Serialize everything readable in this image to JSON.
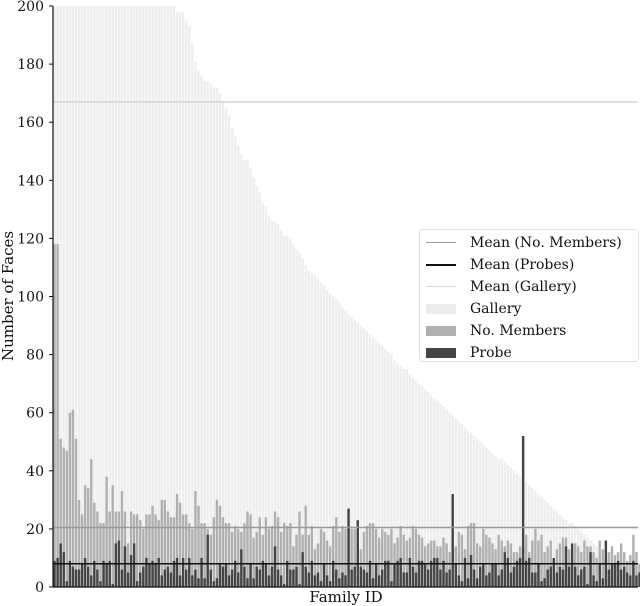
{
  "chart_data": {
    "type": "bar",
    "title": "",
    "xlabel": "Family ID",
    "ylabel": "Number of Faces",
    "ylim": [
      0,
      200
    ],
    "yticks": [
      0,
      20,
      40,
      60,
      80,
      100,
      120,
      140,
      160,
      180,
      200
    ],
    "xticks": [],
    "grid": false,
    "legend_position": "center right",
    "legend": [
      {
        "label": "Mean (No. Members)",
        "kind": "line",
        "color": "#9a9a9a"
      },
      {
        "label": "Mean (Probes)",
        "kind": "line",
        "color": "#111111"
      },
      {
        "label": "Mean (Gallery)",
        "kind": "line",
        "color": "#d4d4d4"
      },
      {
        "label": "Gallery",
        "kind": "bar",
        "color": "#eeeeee"
      },
      {
        "label": "No. Members",
        "kind": "bar",
        "color": "#b0b0b0"
      },
      {
        "label": "Probe",
        "kind": "bar",
        "color": "#454545"
      }
    ],
    "mean_lines": {
      "no_members": 20.5,
      "probes": 8,
      "gallery": 167
    },
    "series": [
      {
        "name": "Gallery",
        "color": "#eeeeee",
        "values": [
          200,
          200,
          200,
          200,
          200,
          200,
          200,
          200,
          200,
          200,
          200,
          200,
          200,
          200,
          200,
          200,
          200,
          200,
          200,
          200,
          200,
          200,
          200,
          200,
          200,
          200,
          200,
          200,
          200,
          200,
          200,
          200,
          200,
          200,
          200,
          200,
          200,
          200,
          200,
          200,
          198,
          198,
          198,
          195,
          193,
          187,
          181,
          178,
          176,
          174,
          174,
          173,
          172,
          172,
          170,
          167,
          165,
          162,
          158,
          155,
          152,
          149,
          147,
          147,
          144,
          141,
          138,
          136,
          132,
          131,
          128,
          126,
          126,
          125,
          123,
          121,
          121,
          120,
          118,
          116,
          115,
          113,
          111,
          109,
          108,
          107,
          106,
          105,
          104,
          102,
          101,
          100,
          99,
          98,
          96,
          95,
          94,
          93,
          92,
          91,
          90,
          89,
          88,
          87,
          86,
          85,
          84,
          83,
          82,
          81,
          80,
          78,
          77,
          76,
          75,
          75,
          73,
          72,
          71,
          70,
          69,
          68,
          67,
          66,
          65,
          64,
          63,
          62,
          61,
          60,
          59,
          58,
          57,
          56,
          55,
          54,
          53,
          52,
          51,
          50,
          49,
          48,
          47,
          46,
          45,
          44,
          44,
          43,
          42,
          41,
          40,
          39,
          38,
          37,
          36,
          35,
          34,
          33,
          32,
          31,
          30,
          29,
          28,
          27,
          26,
          25,
          24,
          23,
          22,
          22,
          21,
          20,
          19,
          18,
          17,
          16,
          15,
          14,
          13,
          12,
          11,
          10,
          9,
          8,
          7,
          6,
          5,
          5,
          4,
          3,
          2
        ]
      },
      {
        "name": "No. Members",
        "color": "#b0b0b0",
        "values": [
          118,
          118,
          51,
          48,
          47,
          60,
          61,
          51,
          30,
          25,
          35,
          34,
          44,
          29,
          26,
          22,
          22,
          38,
          26,
          35,
          26,
          26,
          33,
          26,
          15,
          26,
          25,
          25,
          23,
          20,
          25,
          25,
          28,
          25,
          23,
          30,
          30,
          26,
          24,
          24,
          32,
          29,
          25,
          25,
          22,
          20,
          33,
          28,
          22,
          22,
          20,
          18,
          24,
          30,
          28,
          24,
          22,
          22,
          19,
          21,
          20,
          19,
          22,
          26,
          25,
          17,
          19,
          24,
          18,
          24,
          20,
          21,
          26,
          24,
          19,
          22,
          21,
          22,
          14,
          18,
          26,
          18,
          28,
          18,
          21,
          13,
          15,
          20,
          19,
          16,
          14,
          21,
          24,
          19,
          21,
          20,
          21,
          20,
          20,
          16,
          13,
          19,
          21,
          22,
          22,
          20,
          17,
          20,
          19,
          18,
          20,
          15,
          17,
          21,
          18,
          16,
          17,
          21,
          20,
          18,
          17,
          14,
          15,
          16,
          16,
          14,
          14,
          17,
          15,
          12,
          12,
          14,
          19,
          18,
          13,
          21,
          22,
          22,
          15,
          14,
          20,
          18,
          17,
          15,
          13,
          18,
          16,
          14,
          16,
          15,
          12,
          12,
          14,
          13,
          18,
          12,
          16,
          20,
          16,
          18,
          12,
          14,
          16,
          10,
          13,
          15,
          17,
          17,
          13,
          11,
          15,
          14,
          12,
          16,
          14,
          14,
          12,
          10,
          16,
          13,
          10,
          12,
          14,
          11,
          12,
          15,
          12,
          9,
          11,
          18,
          12,
          8,
          9,
          10,
          15,
          13,
          10,
          9,
          10,
          7,
          6
        ]
      },
      {
        "name": "Probe",
        "color": "#454545",
        "values": [
          9,
          10,
          15,
          12,
          2,
          9,
          7,
          6,
          6,
          8,
          10,
          7,
          4,
          9,
          6,
          2,
          9,
          8,
          9,
          1,
          15,
          16,
          6,
          14,
          5,
          11,
          15,
          2,
          5,
          7,
          10,
          8,
          9,
          8,
          10,
          4,
          6,
          7,
          5,
          9,
          10,
          4,
          10,
          6,
          10,
          4,
          6,
          3,
          10,
          3,
          18,
          6,
          2,
          3,
          8,
          7,
          8,
          4,
          6,
          9,
          5,
          13,
          7,
          3,
          8,
          3,
          7,
          6,
          9,
          8,
          4,
          7,
          14,
          6,
          4,
          1,
          9,
          6,
          6,
          7,
          1,
          12,
          7,
          5,
          9,
          4,
          5,
          2,
          8,
          4,
          2,
          9,
          6,
          3,
          5,
          4,
          27,
          6,
          7,
          23,
          7,
          6,
          5,
          9,
          3,
          8,
          4,
          6,
          9,
          9,
          2,
          8,
          9,
          10,
          5,
          5,
          10,
          7,
          5,
          9,
          9,
          8,
          6,
          9,
          10,
          10,
          6,
          9,
          5,
          6,
          32,
          8,
          4,
          2,
          10,
          3,
          11,
          6,
          3,
          7,
          8,
          4,
          5,
          8,
          8,
          4,
          6,
          12,
          10,
          5,
          7,
          9,
          10,
          52,
          9,
          10,
          5,
          5,
          8,
          2,
          3,
          6,
          7,
          10,
          5,
          7,
          6,
          14,
          7,
          15,
          7,
          4,
          6,
          7,
          1,
          12,
          4,
          2,
          8,
          3,
          16,
          6,
          8,
          8,
          9,
          6,
          7,
          5,
          4,
          9,
          4,
          5,
          6,
          10,
          6,
          5,
          7,
          8,
          11,
          4,
          3
        ]
      }
    ]
  }
}
